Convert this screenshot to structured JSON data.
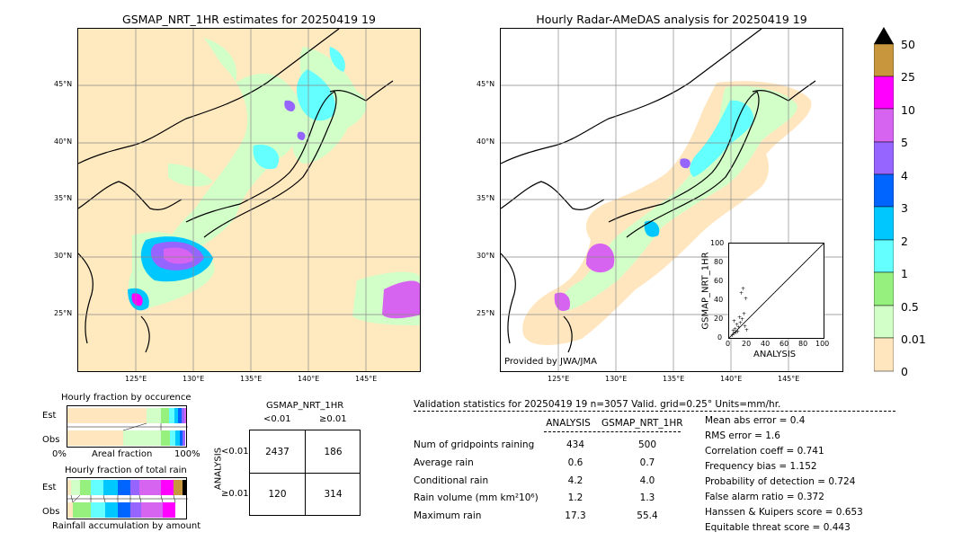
{
  "left_map": {
    "title": "GSMAP_NRT_1HR estimates for 20250419 19",
    "lat_labels": [
      "45°N",
      "40°N",
      "35°N",
      "30°N",
      "25°N"
    ],
    "lon_labels": [
      "125°E",
      "130°E",
      "135°E",
      "140°E",
      "145°E"
    ]
  },
  "right_map": {
    "title": "Hourly Radar-AMeDAS analysis for 20250419 19",
    "lat_labels": [
      "45°N",
      "40°N",
      "35°N",
      "30°N",
      "25°N"
    ],
    "lon_labels": [
      "125°E",
      "130°E",
      "135°E",
      "140°E",
      "145°E"
    ],
    "credit": "Provided by JWA/JMA"
  },
  "scatter_inset": {
    "xlabel": "ANALYSIS",
    "ylabel": "GSMAP_NRT_1HR",
    "ticks": [
      "0",
      "20",
      "40",
      "60",
      "80",
      "100"
    ]
  },
  "colorbar": {
    "labels": [
      "50",
      "25",
      "10",
      "5",
      "4",
      "3",
      "2",
      "1",
      "0.5",
      "0.01",
      "0"
    ],
    "colors": [
      "#c8963c",
      "#ff00ff",
      "#d764f0",
      "#9664ff",
      "#0064ff",
      "#00c8ff",
      "#64ffff",
      "#96f07e",
      "#d2ffc8",
      "#fff0c8",
      "#ffe6be"
    ]
  },
  "occurrence": {
    "title": "Hourly fraction by occurence",
    "row_labels": [
      "Est",
      "Obs"
    ],
    "axis_left": "0%",
    "axis_mid": "Areal fraction",
    "axis_right": "100%"
  },
  "total_rain": {
    "title": "Hourly fraction of total rain",
    "row_labels": [
      "Est",
      "Obs"
    ],
    "footer": "Rainfall accumulation by amount"
  },
  "contingency": {
    "title": "GSMAP_NRT_1HR",
    "col_labels": [
      "<0.01",
      "≥0.01"
    ],
    "row_axis": "ANALYSIS",
    "row_labels": [
      "<0.01",
      "≥0.01"
    ],
    "cells": [
      "2437",
      "186",
      "120",
      "314"
    ]
  },
  "validation": {
    "header": "Validation statistics for 20250419 19  n=3057 Valid. grid=0.25° Units=mm/hr.",
    "col_analysis": "ANALYSIS",
    "col_gsmap": "GSMAP_NRT_1HR",
    "rows": [
      {
        "label": "Num of gridpoints raining",
        "a": "434",
        "g": "500"
      },
      {
        "label": "Average rain",
        "a": "0.6",
        "g": "0.7"
      },
      {
        "label": "Conditional rain",
        "a": "4.2",
        "g": "4.0"
      },
      {
        "label": "Rain volume (mm km²10⁶)",
        "a": "1.2",
        "g": "1.3"
      },
      {
        "label": "Maximum rain",
        "a": "17.3",
        "g": "55.4"
      }
    ],
    "scores": [
      "Mean abs error =    0.4",
      "RMS error =    1.6",
      "Correlation coeff =  0.741",
      "Frequency bias =  1.152",
      "Probability of detection =  0.724",
      "False alarm ratio =  0.372",
      "Hanssen & Kuipers score =  0.653",
      "Equitable threat score =  0.443"
    ]
  }
}
